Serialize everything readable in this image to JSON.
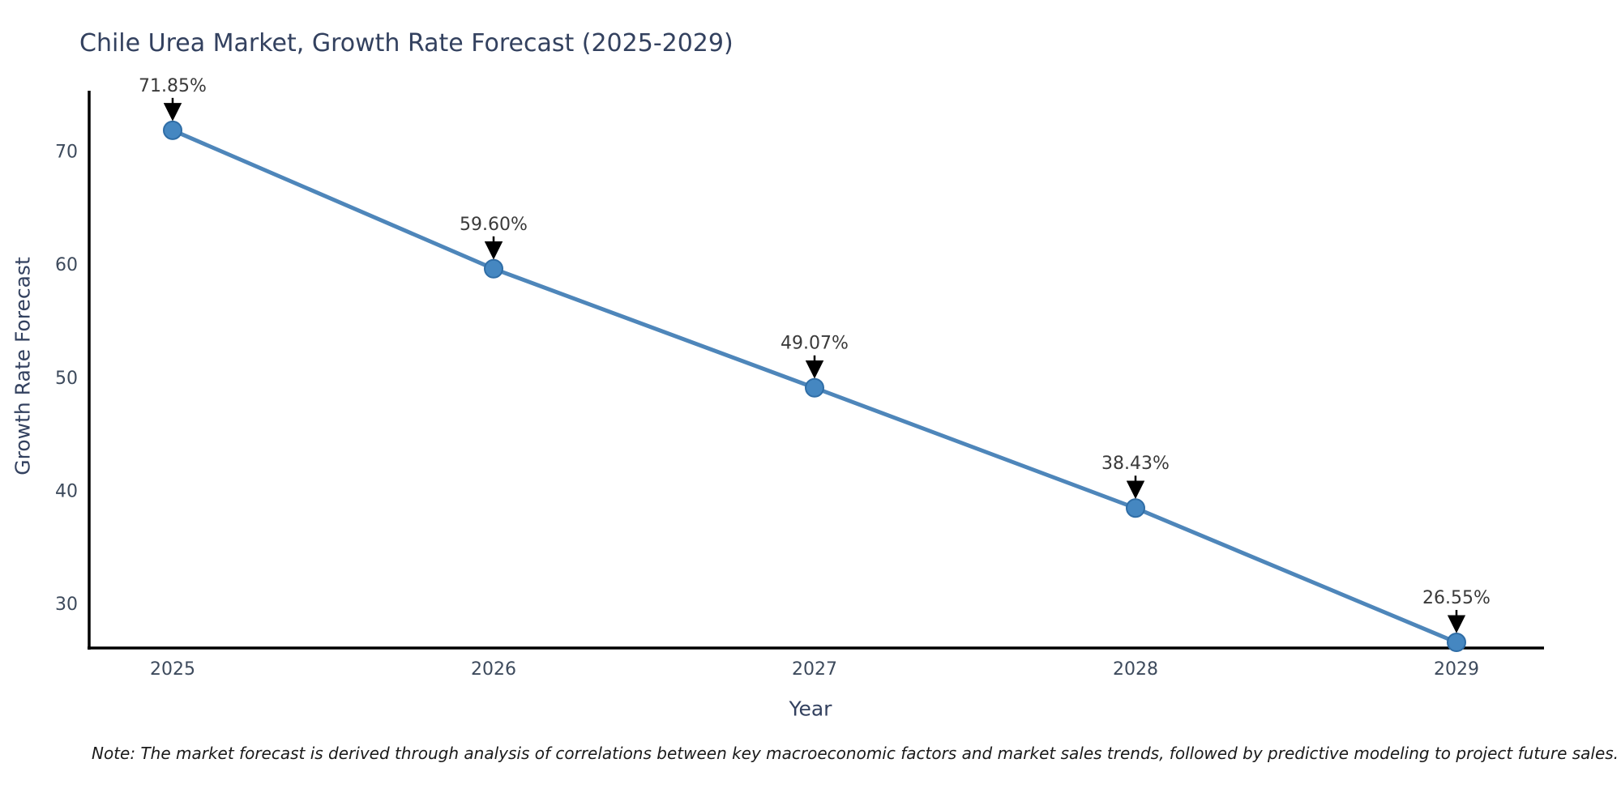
{
  "chart_data": {
    "type": "line",
    "title": "Chile Urea Market, Growth Rate Forecast (2025-2029)",
    "xlabel": "Year",
    "ylabel": "Growth Rate Forecast",
    "categories": [
      "2025",
      "2026",
      "2027",
      "2028",
      "2029"
    ],
    "values": [
      71.85,
      59.6,
      49.07,
      38.43,
      26.55
    ],
    "point_labels": [
      "71.85%",
      "59.60%",
      "49.07%",
      "38.43%",
      "26.55%"
    ],
    "yticks": [
      30,
      40,
      50,
      60,
      70
    ],
    "ylim": [
      26.05,
      75.35
    ],
    "grid": false,
    "legend_position": "none",
    "colors": {
      "line": "#4e86ba",
      "marker_fill": "#4587c1",
      "marker_edge": "#2f6da6",
      "axis": "#000000",
      "arrow": "#000000",
      "title_text": "#33415f",
      "tick_text": "#3d4a5c",
      "annotation_text": "#3a3a3a"
    }
  },
  "footnote": "Note: The market forecast is derived through analysis of correlations between key macroeconomic factors and market sales trends, followed by predictive modeling to project future sales."
}
